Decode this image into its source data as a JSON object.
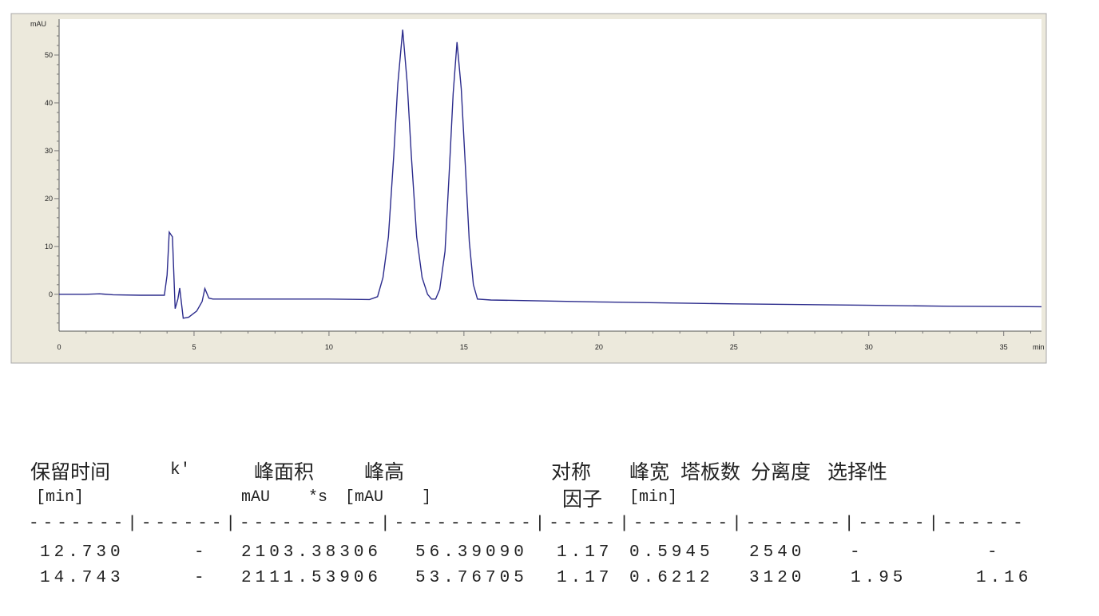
{
  "chart_data": {
    "type": "line",
    "title": "",
    "ylabel": "mAU",
    "xlabel": "min",
    "xlim": [
      0,
      36.4
    ],
    "ylim": [
      -7.7,
      57.5
    ],
    "x_ticks": [
      0,
      5,
      10,
      15,
      20,
      25,
      30,
      35
    ],
    "y_ticks": [
      0,
      10,
      20,
      30,
      40,
      50
    ],
    "grid": false,
    "line_color": "#2b2b8c",
    "series": [
      {
        "points": [
          [
            0,
            0
          ],
          [
            1,
            0
          ],
          [
            1.5,
            0.1
          ],
          [
            2,
            -0.1
          ],
          [
            3,
            -0.2
          ],
          [
            3.9,
            -0.2
          ],
          [
            4.0,
            4
          ],
          [
            4.08,
            13
          ],
          [
            4.2,
            12
          ],
          [
            4.3,
            -3
          ],
          [
            4.4,
            -1
          ],
          [
            4.47,
            1.3
          ],
          [
            4.6,
            -5
          ],
          [
            4.8,
            -4.8
          ],
          [
            5.1,
            -3.5
          ],
          [
            5.3,
            -1.5
          ],
          [
            5.4,
            1.2
          ],
          [
            5.55,
            -0.8
          ],
          [
            5.7,
            -1
          ],
          [
            8,
            -1
          ],
          [
            10,
            -1
          ],
          [
            11.5,
            -1.1
          ],
          [
            11.8,
            -0.5
          ],
          [
            12.0,
            3.5
          ],
          [
            12.2,
            12
          ],
          [
            12.4,
            29
          ],
          [
            12.55,
            44
          ],
          [
            12.73,
            55.3
          ],
          [
            12.9,
            44
          ],
          [
            13.05,
            29
          ],
          [
            13.25,
            12
          ],
          [
            13.45,
            3.5
          ],
          [
            13.65,
            0
          ],
          [
            13.8,
            -1
          ],
          [
            13.95,
            -1
          ],
          [
            14.1,
            1
          ],
          [
            14.3,
            9
          ],
          [
            14.45,
            25
          ],
          [
            14.6,
            42
          ],
          [
            14.743,
            52.7
          ],
          [
            14.9,
            43
          ],
          [
            15.05,
            27
          ],
          [
            15.2,
            11
          ],
          [
            15.35,
            2
          ],
          [
            15.5,
            -1
          ],
          [
            16,
            -1.2
          ],
          [
            20,
            -1.6
          ],
          [
            25,
            -2
          ],
          [
            30,
            -2.3
          ],
          [
            33,
            -2.5
          ],
          [
            36.4,
            -2.6
          ]
        ]
      }
    ]
  },
  "table": {
    "headers": [
      "保留时间",
      "k'",
      "峰面积",
      "峰高",
      "对称",
      "峰宽",
      "塔板数",
      "分离度",
      "选择性"
    ],
    "units": [
      "[min]",
      "mAU    *s",
      "[mAU    ]",
      "因子",
      "[min]"
    ],
    "separator": "-------|------|----------|----------|-----|-------|-------|-----|------",
    "rows": [
      [
        "12.730",
        "-",
        "2103.38306",
        "56.39090",
        "1.17",
        "0.5945",
        "2540",
        "-",
        "-"
      ],
      [
        "14.743",
        "-",
        "2111.53906",
        "53.76705",
        "1.17",
        "0.6212",
        "3120",
        "1.95",
        "1.16"
      ]
    ]
  }
}
